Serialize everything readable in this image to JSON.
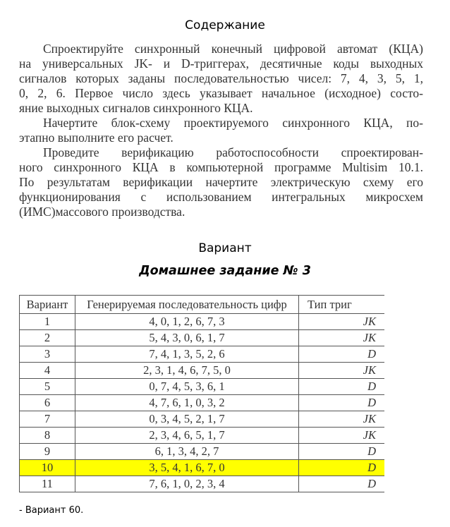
{
  "title": "Содержание",
  "paragraphs": [
    [
      "Спроектируйте синхронный конечный цифровой автомат (КЦА)",
      "на универсальных JK- и D-триггерах, десятичные коды выходных",
      "сигналов которых заданы последовательностью чисел: 7, 4, 3, 5, 1,",
      "0, 2, 6. Первое число здесь указывает начальное (исходное) состо-",
      "яние выходных сигналов синхронного КЦА."
    ],
    [
      "Начертите блок-схему проектируемого синхронного КЦА, по-",
      "этапно выполните его расчет."
    ],
    [
      "Проведите верификацию работоспособности спроектирован-",
      "ного синхронного КЦА в компьютерной программе Multisim 10.1.",
      "По результатам верификации начертите электрическую схему его",
      "функционирования с использованием интегральных микросхем",
      "(ИМС)массового производства."
    ]
  ],
  "variant_heading": "Вариант",
  "homework_heading": "Домашнее задание № 3",
  "table": {
    "headers": [
      "Вариант",
      "Генерируемая последовательность цифр",
      "Тип триг"
    ],
    "rows": [
      [
        "1",
        "4, 0, 1, 2, 6, 7, 3",
        "JK"
      ],
      [
        "2",
        "5, 4, 3, 0, 6, 1, 7",
        "JK"
      ],
      [
        "3",
        "7, 4, 1, 3, 5, 2, 6",
        "D"
      ],
      [
        "4",
        "2, 3, 1, 4, 6, 7, 5, 0",
        "JK"
      ],
      [
        "5",
        "0, 7, 4, 5, 3, 6, 1",
        "D"
      ],
      [
        "6",
        "4, 7, 6, 1, 0, 3, 2",
        "D"
      ],
      [
        "7",
        "0, 3, 4, 5, 2, 1, 7",
        "JK"
      ],
      [
        "8",
        "2, 3, 4, 6, 5, 1, 7",
        "JK"
      ],
      [
        "9",
        "6, 1, 3, 4, 2, 7",
        "D"
      ],
      [
        "10",
        "3, 5, 4, 1, 6, 7, 0",
        "D"
      ],
      [
        "11",
        "7, 6, 1, 0, 2, 3, 4",
        "D"
      ]
    ],
    "highlighted_row": "10",
    "highlight_color": "#ffff00"
  },
  "footnote": "- Вариант 60."
}
